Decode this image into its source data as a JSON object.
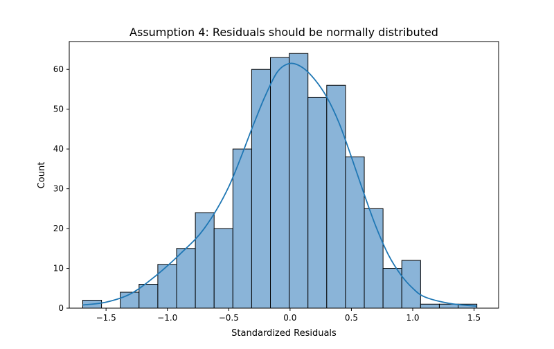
{
  "chart_data": {
    "type": "bar",
    "title": "Assumption 4: Residuals should be normally distributed",
    "xlabel": "Standardized Residuals",
    "ylabel": "Count",
    "xlim": [
      -1.8,
      1.7
    ],
    "ylim": [
      0,
      67
    ],
    "xticks": [
      -1.5,
      -1.0,
      -0.5,
      0.0,
      0.5,
      1.0,
      1.5
    ],
    "xtick_labels": [
      "−1.5",
      "−1.0",
      "−0.5",
      "0.0",
      "0.5",
      "1.0",
      "1.5"
    ],
    "yticks": [
      0,
      10,
      20,
      30,
      40,
      50,
      60
    ],
    "ytick_labels": [
      "0",
      "10",
      "20",
      "30",
      "40",
      "50",
      "60"
    ],
    "bin_edges": [
      -1.69,
      -1.537,
      -1.384,
      -1.231,
      -1.078,
      -0.925,
      -0.772,
      -0.619,
      -0.466,
      -0.313,
      -0.16,
      -0.007,
      0.146,
      0.299,
      0.452,
      0.605,
      0.758,
      0.911,
      1.064,
      1.217,
      1.37,
      1.523
    ],
    "counts": [
      2,
      0,
      4,
      6,
      11,
      15,
      24,
      20,
      40,
      60,
      63,
      64,
      53,
      56,
      38,
      25,
      10,
      12,
      1,
      1,
      1
    ],
    "kde": {
      "x": [
        -1.69,
        -1.5,
        -1.3,
        -1.1,
        -0.9,
        -0.7,
        -0.5,
        -0.3,
        -0.2,
        -0.1,
        0.0,
        0.1,
        0.2,
        0.3,
        0.4,
        0.5,
        0.6,
        0.7,
        0.8,
        0.9,
        1.0,
        1.1,
        1.3,
        1.52
      ],
      "y": [
        0.8,
        1.5,
        3.6,
        8.0,
        13.5,
        20.0,
        30.5,
        46.0,
        53.5,
        59.5,
        61.5,
        60.5,
        57.5,
        53.0,
        46.5,
        38.0,
        29.0,
        20.5,
        13.5,
        8.5,
        5.0,
        2.8,
        1.2,
        0.5
      ]
    },
    "bar_fill": "#8ab4d8",
    "bar_edge": "#000000",
    "line_color": "#1f77b4",
    "grid": false,
    "legend": "none"
  }
}
